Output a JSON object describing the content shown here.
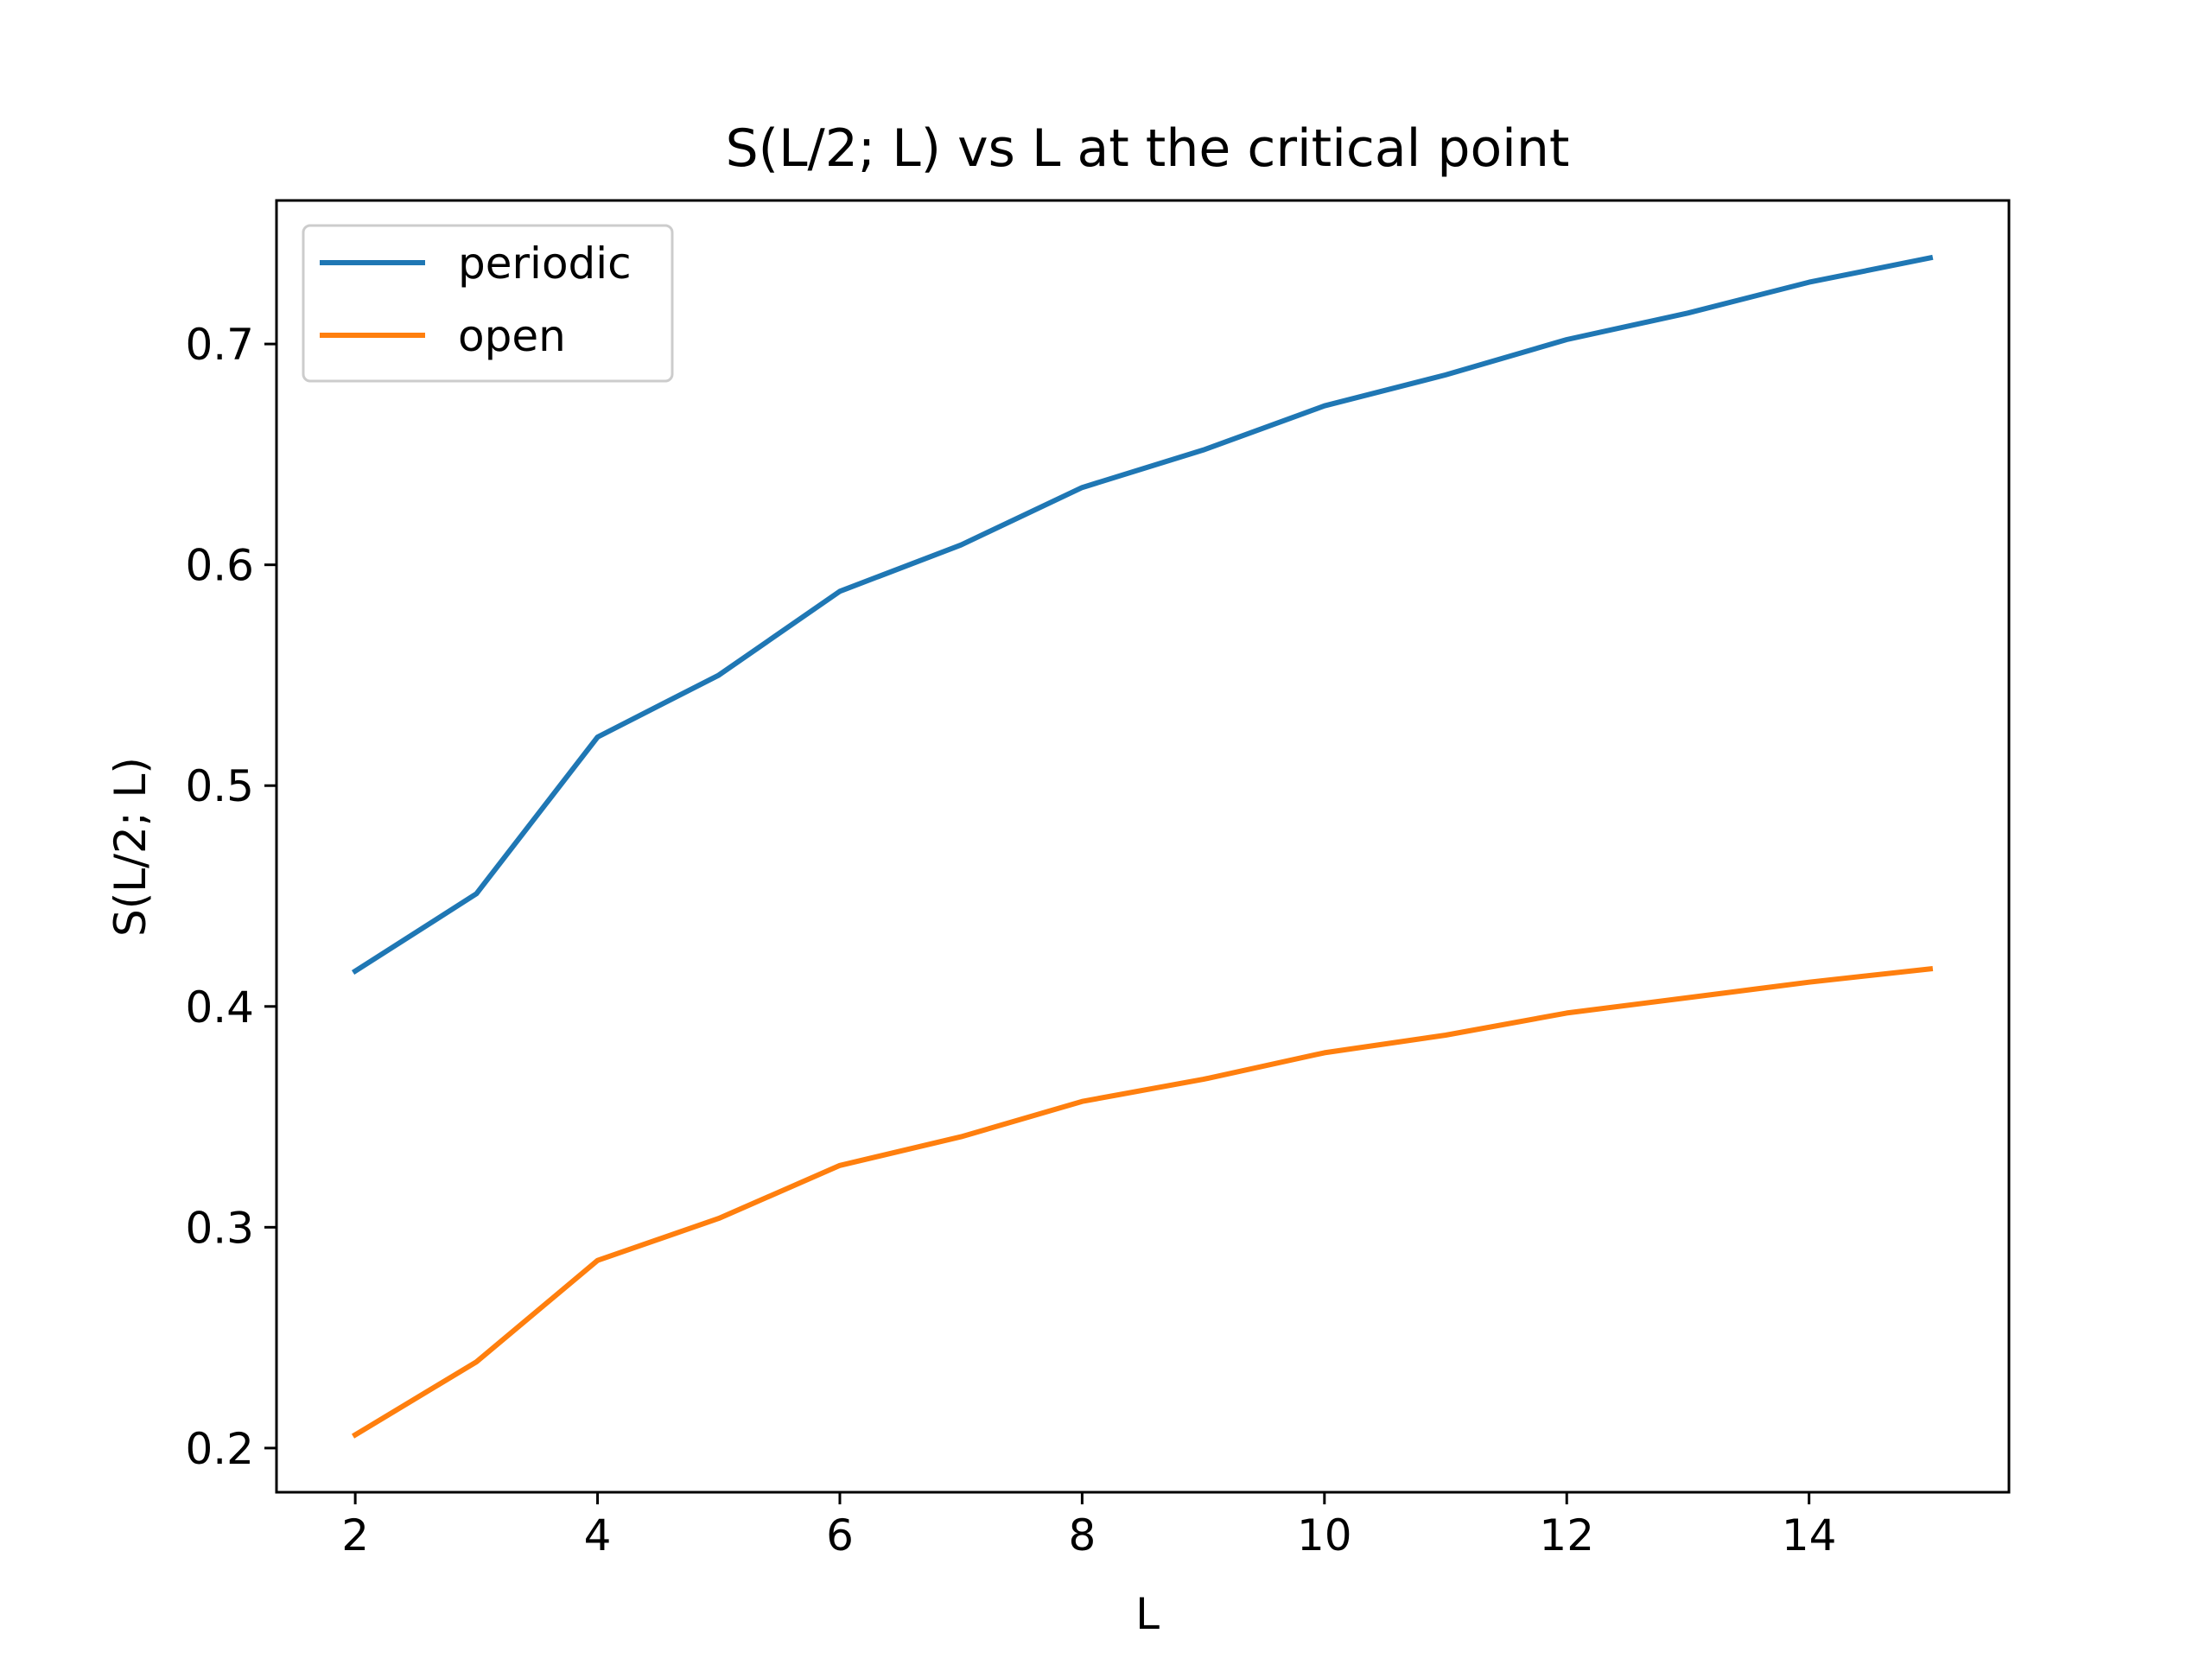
{
  "chart_data": {
    "type": "line",
    "title": "S(L/2; L) vs L at the critical point",
    "xlabel": "L",
    "ylabel": "S(L/2; L)",
    "x": [
      2,
      3,
      4,
      5,
      6,
      7,
      8,
      9,
      10,
      11,
      12,
      13,
      14,
      15
    ],
    "xlim": [
      1.35,
      15.65
    ],
    "ylim": [
      0.18,
      0.765
    ],
    "xticks": [
      2,
      4,
      6,
      8,
      10,
      12,
      14
    ],
    "yticks": [
      0.2,
      0.3,
      0.4,
      0.5,
      0.6,
      0.7
    ],
    "xtick_labels": [
      "2",
      "4",
      "6",
      "8",
      "10",
      "12",
      "14"
    ],
    "ytick_labels": [
      "0.2",
      "0.3",
      "0.4",
      "0.5",
      "0.6",
      "0.7"
    ],
    "grid": false,
    "legend_position": "upper-left",
    "series": [
      {
        "name": "periodic",
        "color": "#1f77b4",
        "values": [
          0.416,
          0.451,
          0.522,
          0.55,
          0.588,
          0.609,
          0.635,
          0.652,
          0.672,
          0.686,
          0.702,
          0.714,
          0.728,
          0.739
        ]
      },
      {
        "name": "open",
        "color": "#ff7f0e",
        "values": [
          0.206,
          0.239,
          0.285,
          0.304,
          0.328,
          0.341,
          0.357,
          0.367,
          0.379,
          0.387,
          0.397,
          0.404,
          0.411,
          0.417
        ]
      }
    ]
  }
}
